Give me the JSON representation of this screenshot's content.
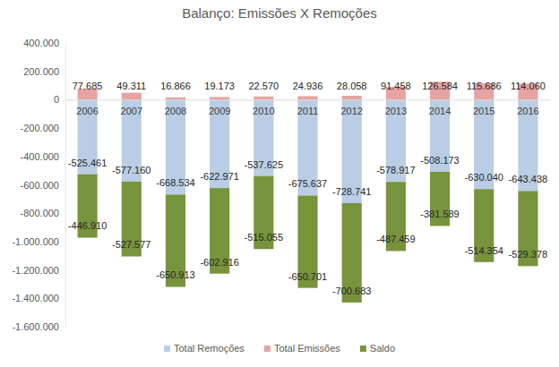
{
  "chart_data": {
    "type": "bar",
    "title": "Balanço: Emissões X Remoções",
    "categories": [
      "2006",
      "2007",
      "2008",
      "2009",
      "2010",
      "2011",
      "2012",
      "2013",
      "2014",
      "2015",
      "2016"
    ],
    "series": [
      {
        "name": "Total Remoções",
        "color": "#b9cde5",
        "values": [
          -525461,
          -577160,
          -668534,
          -622971,
          -537625,
          -675637,
          -728741,
          -578917,
          -508173,
          -630040,
          -643438
        ],
        "value_labels": [
          "-525.461",
          "-577.160",
          "-668.534",
          "-622.971",
          "-537.625",
          "-675.637",
          "-728.741",
          "-578.917",
          "-508.173",
          "-630.040",
          "-643.438"
        ]
      },
      {
        "name": "Total Emissões",
        "color": "#e6a3a2",
        "values": [
          77685,
          49311,
          16866,
          19173,
          22570,
          24936,
          28058,
          91458,
          126584,
          115686,
          114060
        ],
        "value_labels": [
          "77.685",
          "49.311",
          "16.866",
          "19.173",
          "22.570",
          "24.936",
          "28.058",
          "91.458",
          "126.584",
          "115.686",
          "114.060"
        ]
      },
      {
        "name": "Saldo",
        "color": "#77933c",
        "values": [
          -446910,
          -527577,
          -650913,
          -602916,
          -515055,
          -650701,
          -700683,
          -487459,
          -381589,
          -514354,
          -529378
        ],
        "value_labels": [
          "-446.910",
          "-527.577",
          "-650.913",
          "-602.916",
          "-515.055",
          "-650.701",
          "-700.683",
          "-487.459",
          "-381.589",
          "-514.354",
          "-529.378"
        ]
      }
    ],
    "stacked": true,
    "data_labels": true,
    "grid": false,
    "legend": "bottom",
    "ylim": [
      -1600000,
      400000
    ],
    "yticks": [
      {
        "value": 400000,
        "label": "400.000"
      },
      {
        "value": 200000,
        "label": "200.000"
      },
      0,
      {
        "value": -200000,
        "label": "-200.000"
      },
      {
        "value": -400000,
        "label": "-400.000"
      },
      {
        "value": -600000,
        "label": "-600.000"
      },
      {
        "value": -800000,
        "label": "-800.000"
      },
      {
        "value": -1000000,
        "label": "-1.000.000"
      },
      {
        "value": -1200000,
        "label": "-1.200.000"
      },
      {
        "value": -1400000,
        "label": "-1.400.000"
      },
      {
        "value": -1600000,
        "label": "-1.600.000"
      }
    ]
  }
}
